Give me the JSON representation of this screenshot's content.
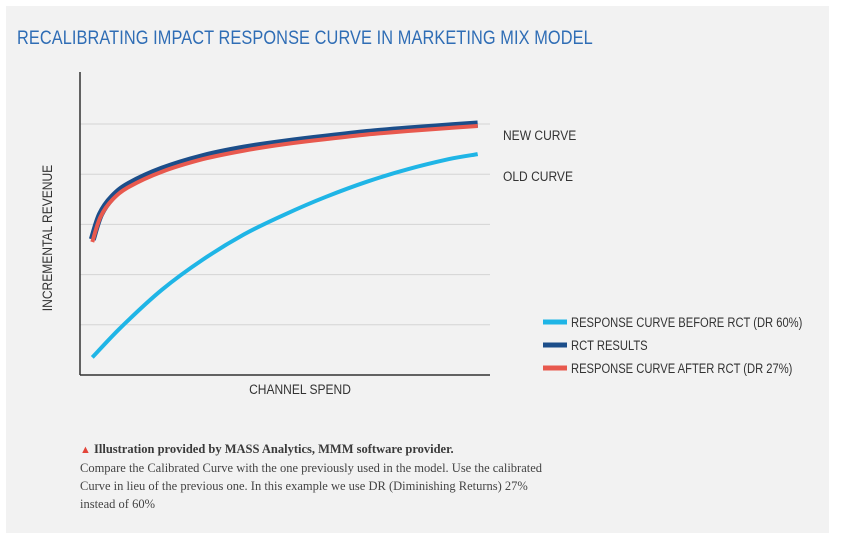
{
  "title": "RECALIBRATING IMPACT RESPONSE CURVE IN MARKETING MIX MODEL",
  "colors": {
    "title": "#2f6db5",
    "before": "#1fb5e6",
    "rct": "#1c4e8a",
    "after": "#e8594e",
    "grid": "#d4d4d4",
    "axis": "#333333",
    "background": "#f2f2f2"
  },
  "chart_data": {
    "type": "line",
    "xlabel": "CHANNEL SPEND",
    "ylabel": "INCREMENTAL REVENUE",
    "xlim": [
      0,
      1
    ],
    "ylim": [
      0,
      5
    ],
    "gridlines": [
      1,
      2,
      3,
      4,
      5
    ],
    "grid": true,
    "legend_position": "bottom-right",
    "series": [
      {
        "name": "RESPONSE CURVE BEFORE RCT (DR 60%)",
        "key": "before",
        "x": [
          0.03,
          0.1,
          0.2,
          0.3,
          0.4,
          0.5,
          0.6,
          0.7,
          0.8,
          0.9,
          0.97
        ],
        "y": [
          0.35,
          0.95,
          1.7,
          2.3,
          2.8,
          3.2,
          3.55,
          3.85,
          4.1,
          4.3,
          4.4
        ]
      },
      {
        "name": "RCT RESULTS",
        "key": "rct",
        "x": [
          0.03,
          0.05,
          0.08,
          0.12,
          0.2,
          0.3,
          0.4,
          0.5,
          0.6,
          0.7,
          0.8,
          0.9,
          0.97
        ],
        "y": [
          2.7,
          3.2,
          3.55,
          3.8,
          4.1,
          4.35,
          4.52,
          4.64,
          4.74,
          4.83,
          4.9,
          4.96,
          5.0
        ]
      },
      {
        "name": "RESPONSE CURVE AFTER RCT (DR 27%)",
        "key": "after",
        "x": [
          0.03,
          0.05,
          0.08,
          0.12,
          0.2,
          0.3,
          0.4,
          0.5,
          0.6,
          0.7,
          0.8,
          0.9,
          0.97
        ],
        "y": [
          2.65,
          3.15,
          3.5,
          3.75,
          4.05,
          4.3,
          4.47,
          4.6,
          4.7,
          4.79,
          4.86,
          4.92,
          4.96
        ]
      }
    ],
    "annotations": [
      {
        "text": "NEW CURVE",
        "anchor": "rct"
      },
      {
        "text": "OLD CURVE",
        "anchor": "before"
      }
    ]
  },
  "caption": {
    "lead": "Illustration provided by MASS Analytics, MMM software provider.",
    "body": "Compare the Calibrated Curve with the one previously used in the model. Use the calibrated Curve in lieu of the previous one. In this example we use DR (Diminishing Returns) 27% instead of 60%"
  }
}
